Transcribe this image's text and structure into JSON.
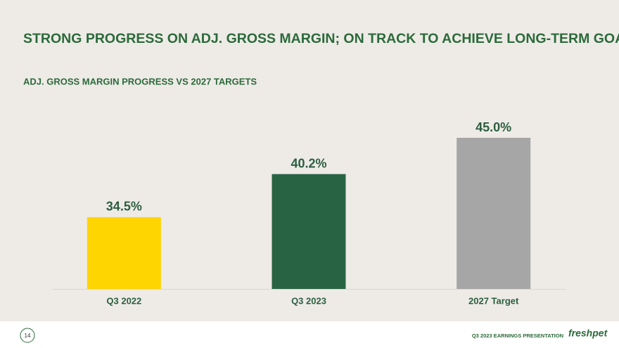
{
  "chart_data": {
    "type": "bar",
    "title": "STRONG PROGRESS ON ADJ. GROSS MARGIN; ON TRACK TO ACHIEVE LONG-TERM GOALS",
    "subtitle": "ADJ. GROSS MARGIN PROGRESS VS 2027 TARGETS",
    "categories": [
      "Q3 2022",
      "Q3 2023",
      "2027 Target"
    ],
    "values": [
      34.5,
      40.2,
      45.0
    ],
    "value_labels": [
      "34.5%",
      "40.2%",
      "45.0%"
    ],
    "colors": [
      "#ffd500",
      "#286443",
      "#a6a6a6"
    ],
    "ylim": [
      25,
      47
    ]
  },
  "footer": {
    "page": "14",
    "text": "Q3 2023 EARNINGS PRESENTATION",
    "logo": "freshpet"
  }
}
